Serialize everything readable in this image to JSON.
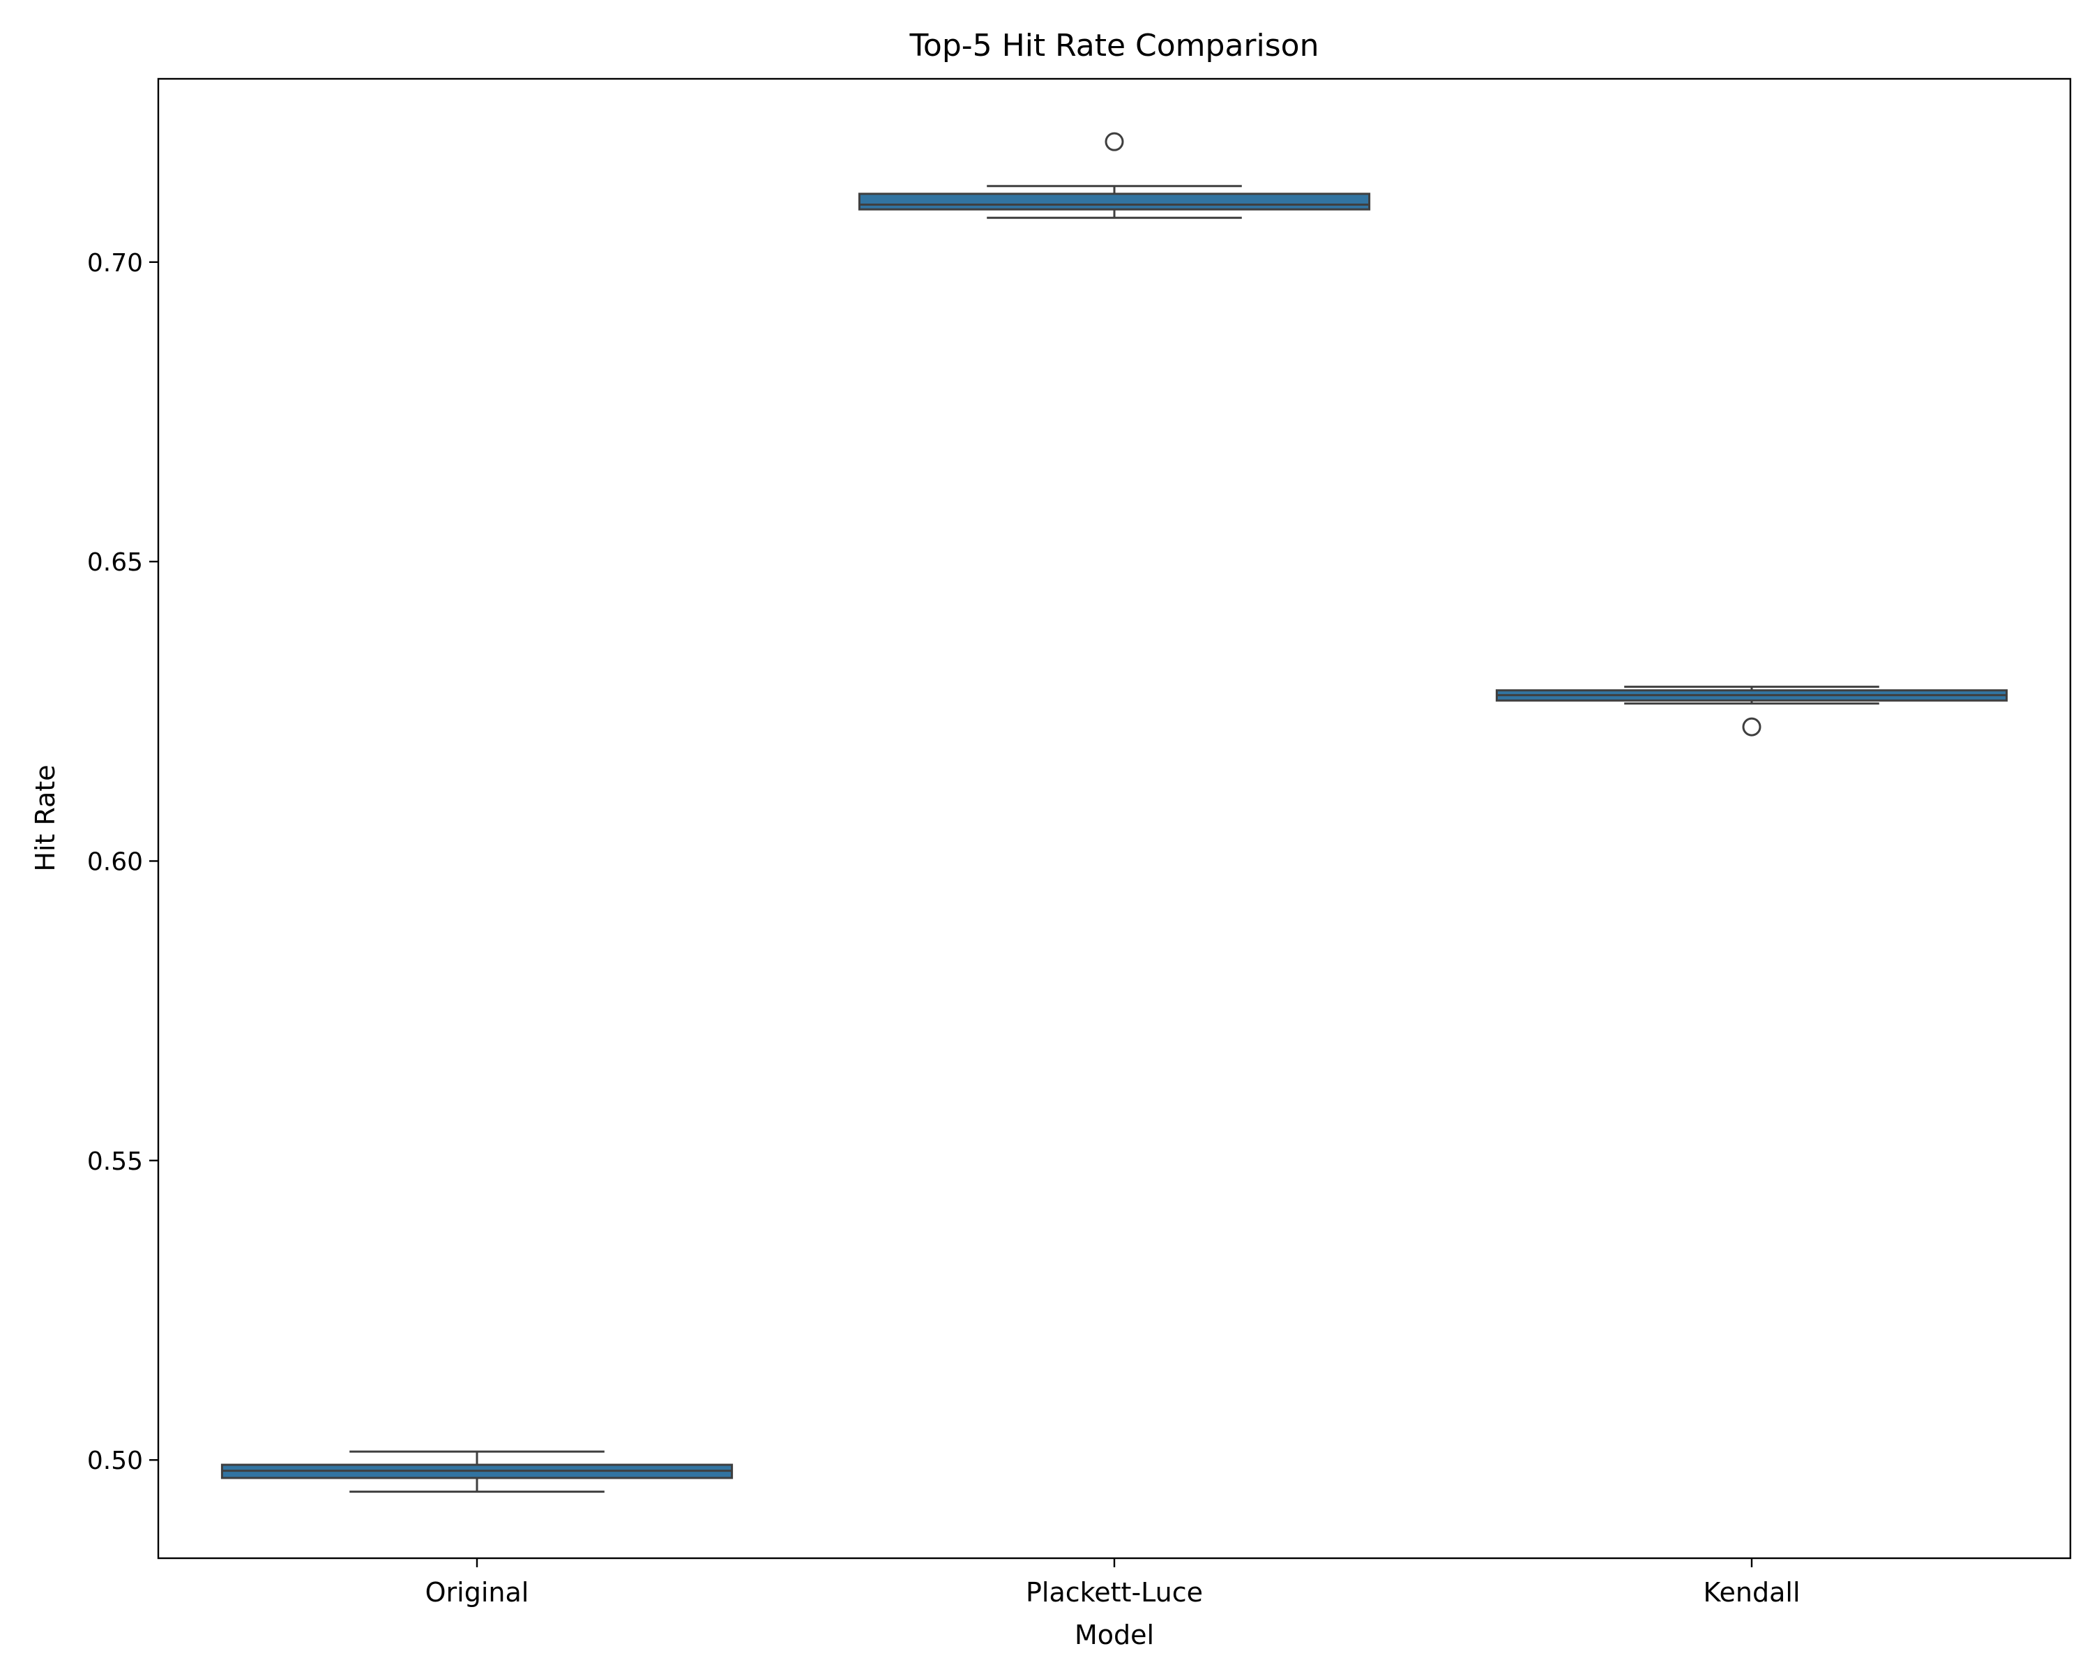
{
  "chart_data": {
    "type": "box",
    "title": "Top-5 Hit Rate Comparison",
    "xlabel": "Model",
    "ylabel": "Hit Rate",
    "categories": [
      "Original",
      "Plackett-Luce",
      "Kendall"
    ],
    "ylim": [
      0.4836,
      0.7306
    ],
    "yticks": [
      0.5,
      0.55,
      0.6,
      0.65,
      0.7
    ],
    "ytick_labels": [
      "0.50",
      "0.55",
      "0.60",
      "0.65",
      "0.70"
    ],
    "boxes": [
      {
        "category": "Original",
        "whisker_low": 0.4947,
        "q1": 0.497,
        "median": 0.4982,
        "q3": 0.4992,
        "whisker_high": 0.5014,
        "outliers": []
      },
      {
        "category": "Plackett-Luce",
        "whisker_low": 0.7074,
        "q1": 0.7088,
        "median": 0.7096,
        "q3": 0.7114,
        "whisker_high": 0.7127,
        "outliers": [
          0.7201
        ]
      },
      {
        "category": "Kendall",
        "whisker_low": 0.6263,
        "q1": 0.6268,
        "median": 0.6277,
        "q3": 0.6285,
        "whisker_high": 0.6291,
        "outliers": [
          0.6224
        ]
      }
    ],
    "box_color": "#3274a1",
    "line_color": "#3f3f3f",
    "grid": false,
    "legend": "none"
  }
}
